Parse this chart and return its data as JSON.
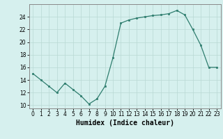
{
  "x": [
    0,
    1,
    2,
    3,
    4,
    5,
    6,
    7,
    8,
    9,
    10,
    11,
    12,
    13,
    14,
    15,
    16,
    17,
    18,
    19,
    20,
    21,
    22,
    23
  ],
  "y": [
    15,
    14,
    13,
    12,
    13.5,
    12.5,
    11.5,
    10.2,
    11,
    13,
    17.5,
    23,
    23.5,
    23.8,
    24,
    24.2,
    24.3,
    24.5,
    25,
    24.3,
    22,
    19.5,
    16,
    16
  ],
  "line_color": "#2e7d6e",
  "marker": "s",
  "marker_size": 2,
  "bg_color": "#d6f0ee",
  "grid_color": "#b8d8d4",
  "xlabel": "Humidex (Indice chaleur)",
  "xlim": [
    -0.5,
    23.5
  ],
  "ylim": [
    9.5,
    26
  ],
  "xticks": [
    0,
    1,
    2,
    3,
    4,
    5,
    6,
    7,
    8,
    9,
    10,
    11,
    12,
    13,
    14,
    15,
    16,
    17,
    18,
    19,
    20,
    21,
    22,
    23
  ],
  "yticks": [
    10,
    12,
    14,
    16,
    18,
    20,
    22,
    24
  ],
  "tick_fontsize": 5.5,
  "label_fontsize": 7.0,
  "spine_color": "#888888"
}
